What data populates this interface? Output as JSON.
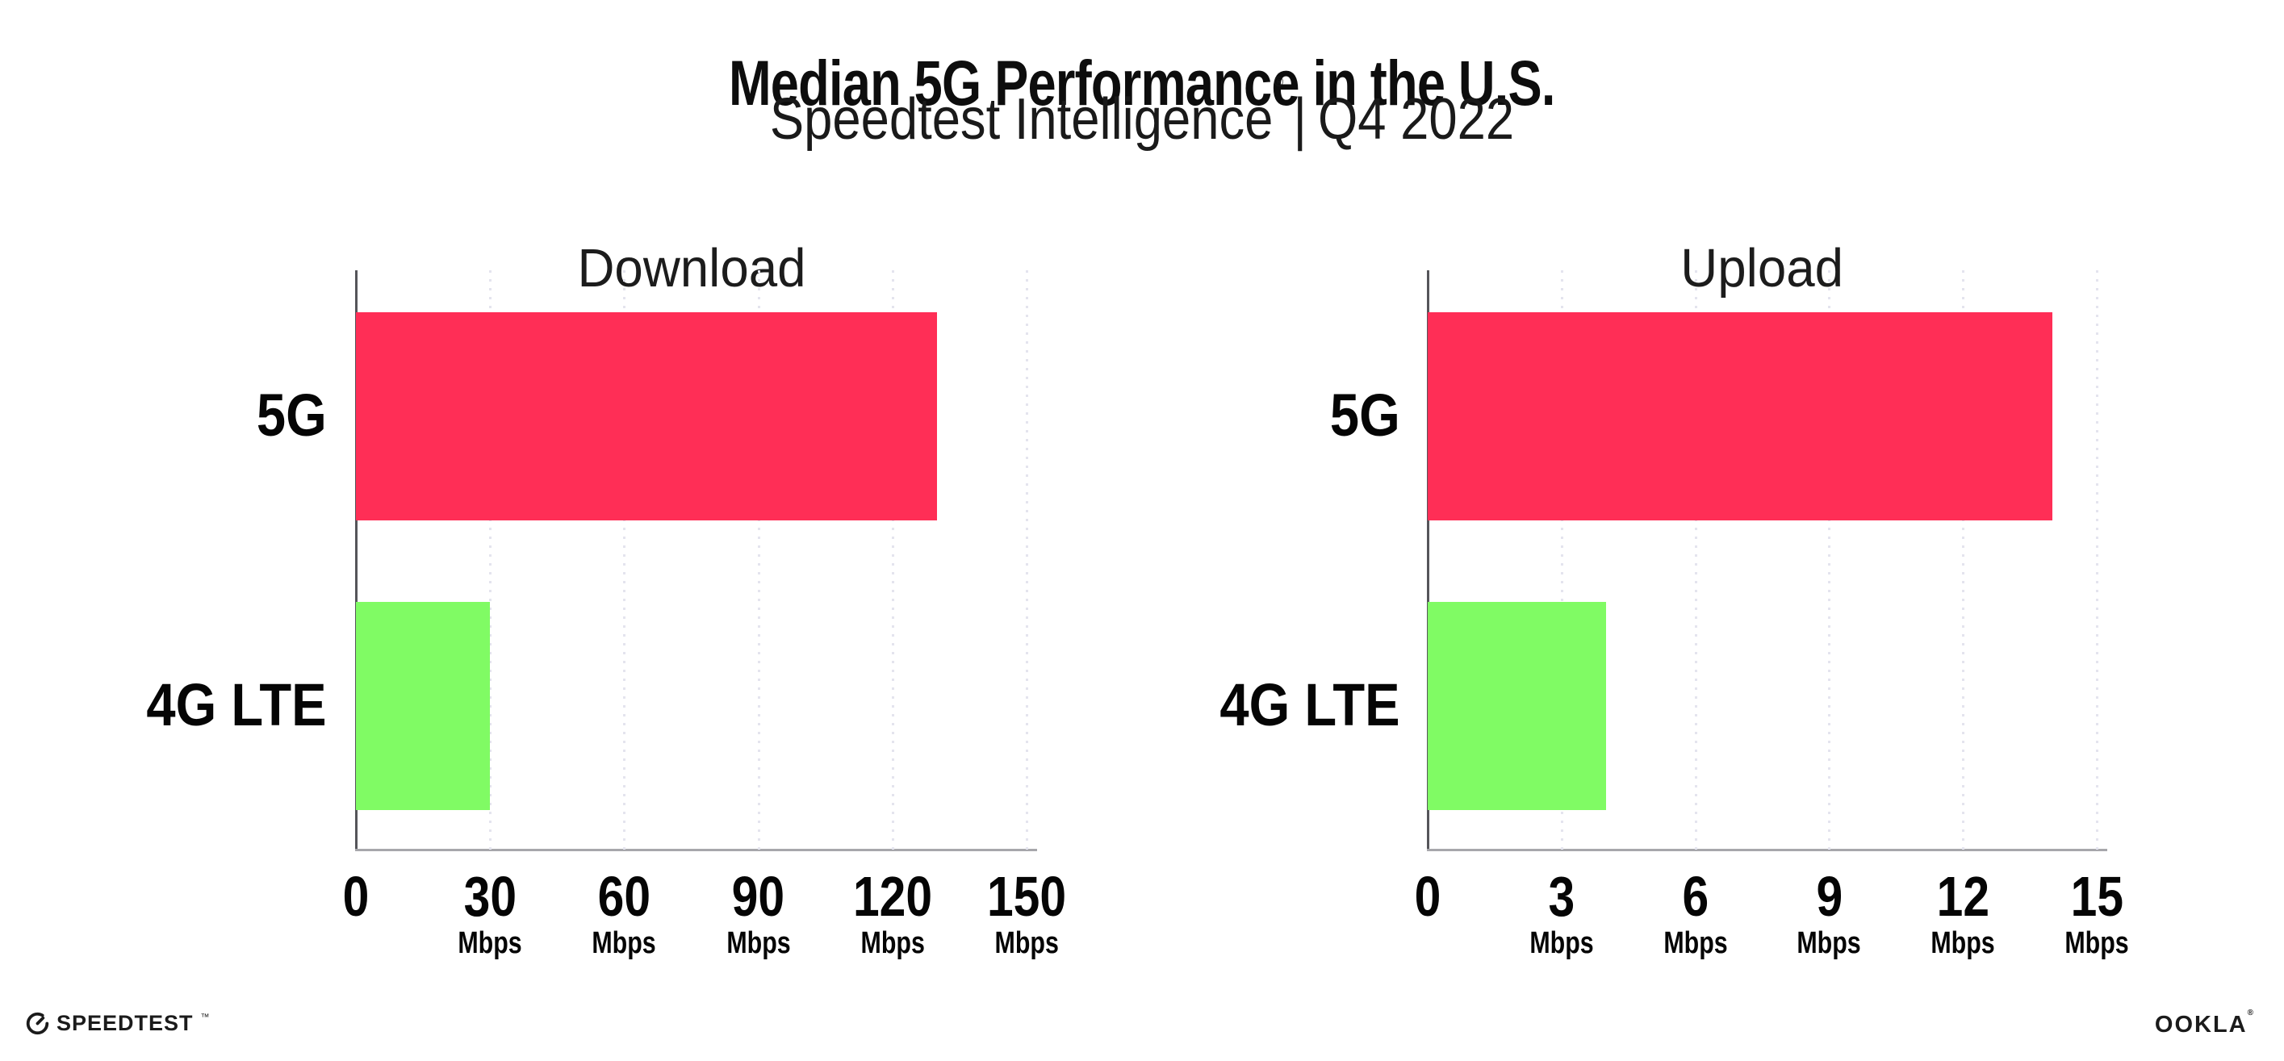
{
  "header": {
    "title": "Median 5G Performance in the U.S.",
    "subtitle_brand": "Speedtest Intelligence",
    "subtitle_reg": "®",
    "subtitle_divider": "|",
    "subtitle_period": "Q4 2022"
  },
  "footer": {
    "speedtest_logo_text": "SPEEDTEST",
    "speedtest_trademark": "™",
    "ookla_logo_text": "OOKLA",
    "ookla_reg": "®"
  },
  "colors": {
    "bar_5g": "#ff2e56",
    "bar_4g_lte": "#80fb64",
    "gridline": "#e4e4ee",
    "axis_line": "#a7a7ab",
    "y_spine": "#55555a",
    "text": "#0d0d0d"
  },
  "chart_data": [
    {
      "type": "bar",
      "orientation": "horizontal",
      "title": "Download",
      "categories": [
        "5G",
        "4G LTE"
      ],
      "values": [
        130,
        30
      ],
      "unit": "Mbps",
      "xlim": [
        0,
        150
      ],
      "xticks": [
        0,
        30,
        60,
        90,
        120,
        150
      ],
      "grid": "vertical-dotted",
      "legend": "none",
      "bar_colors": [
        "#ff2e56",
        "#80fb64"
      ]
    },
    {
      "type": "bar",
      "orientation": "horizontal",
      "title": "Upload",
      "categories": [
        "5G",
        "4G LTE"
      ],
      "values": [
        14,
        4
      ],
      "unit": "Mbps",
      "xlim": [
        0,
        15
      ],
      "xticks": [
        0,
        3,
        6,
        9,
        12,
        15
      ],
      "grid": "vertical-dotted",
      "legend": "none",
      "bar_colors": [
        "#ff2e56",
        "#80fb64"
      ]
    }
  ]
}
